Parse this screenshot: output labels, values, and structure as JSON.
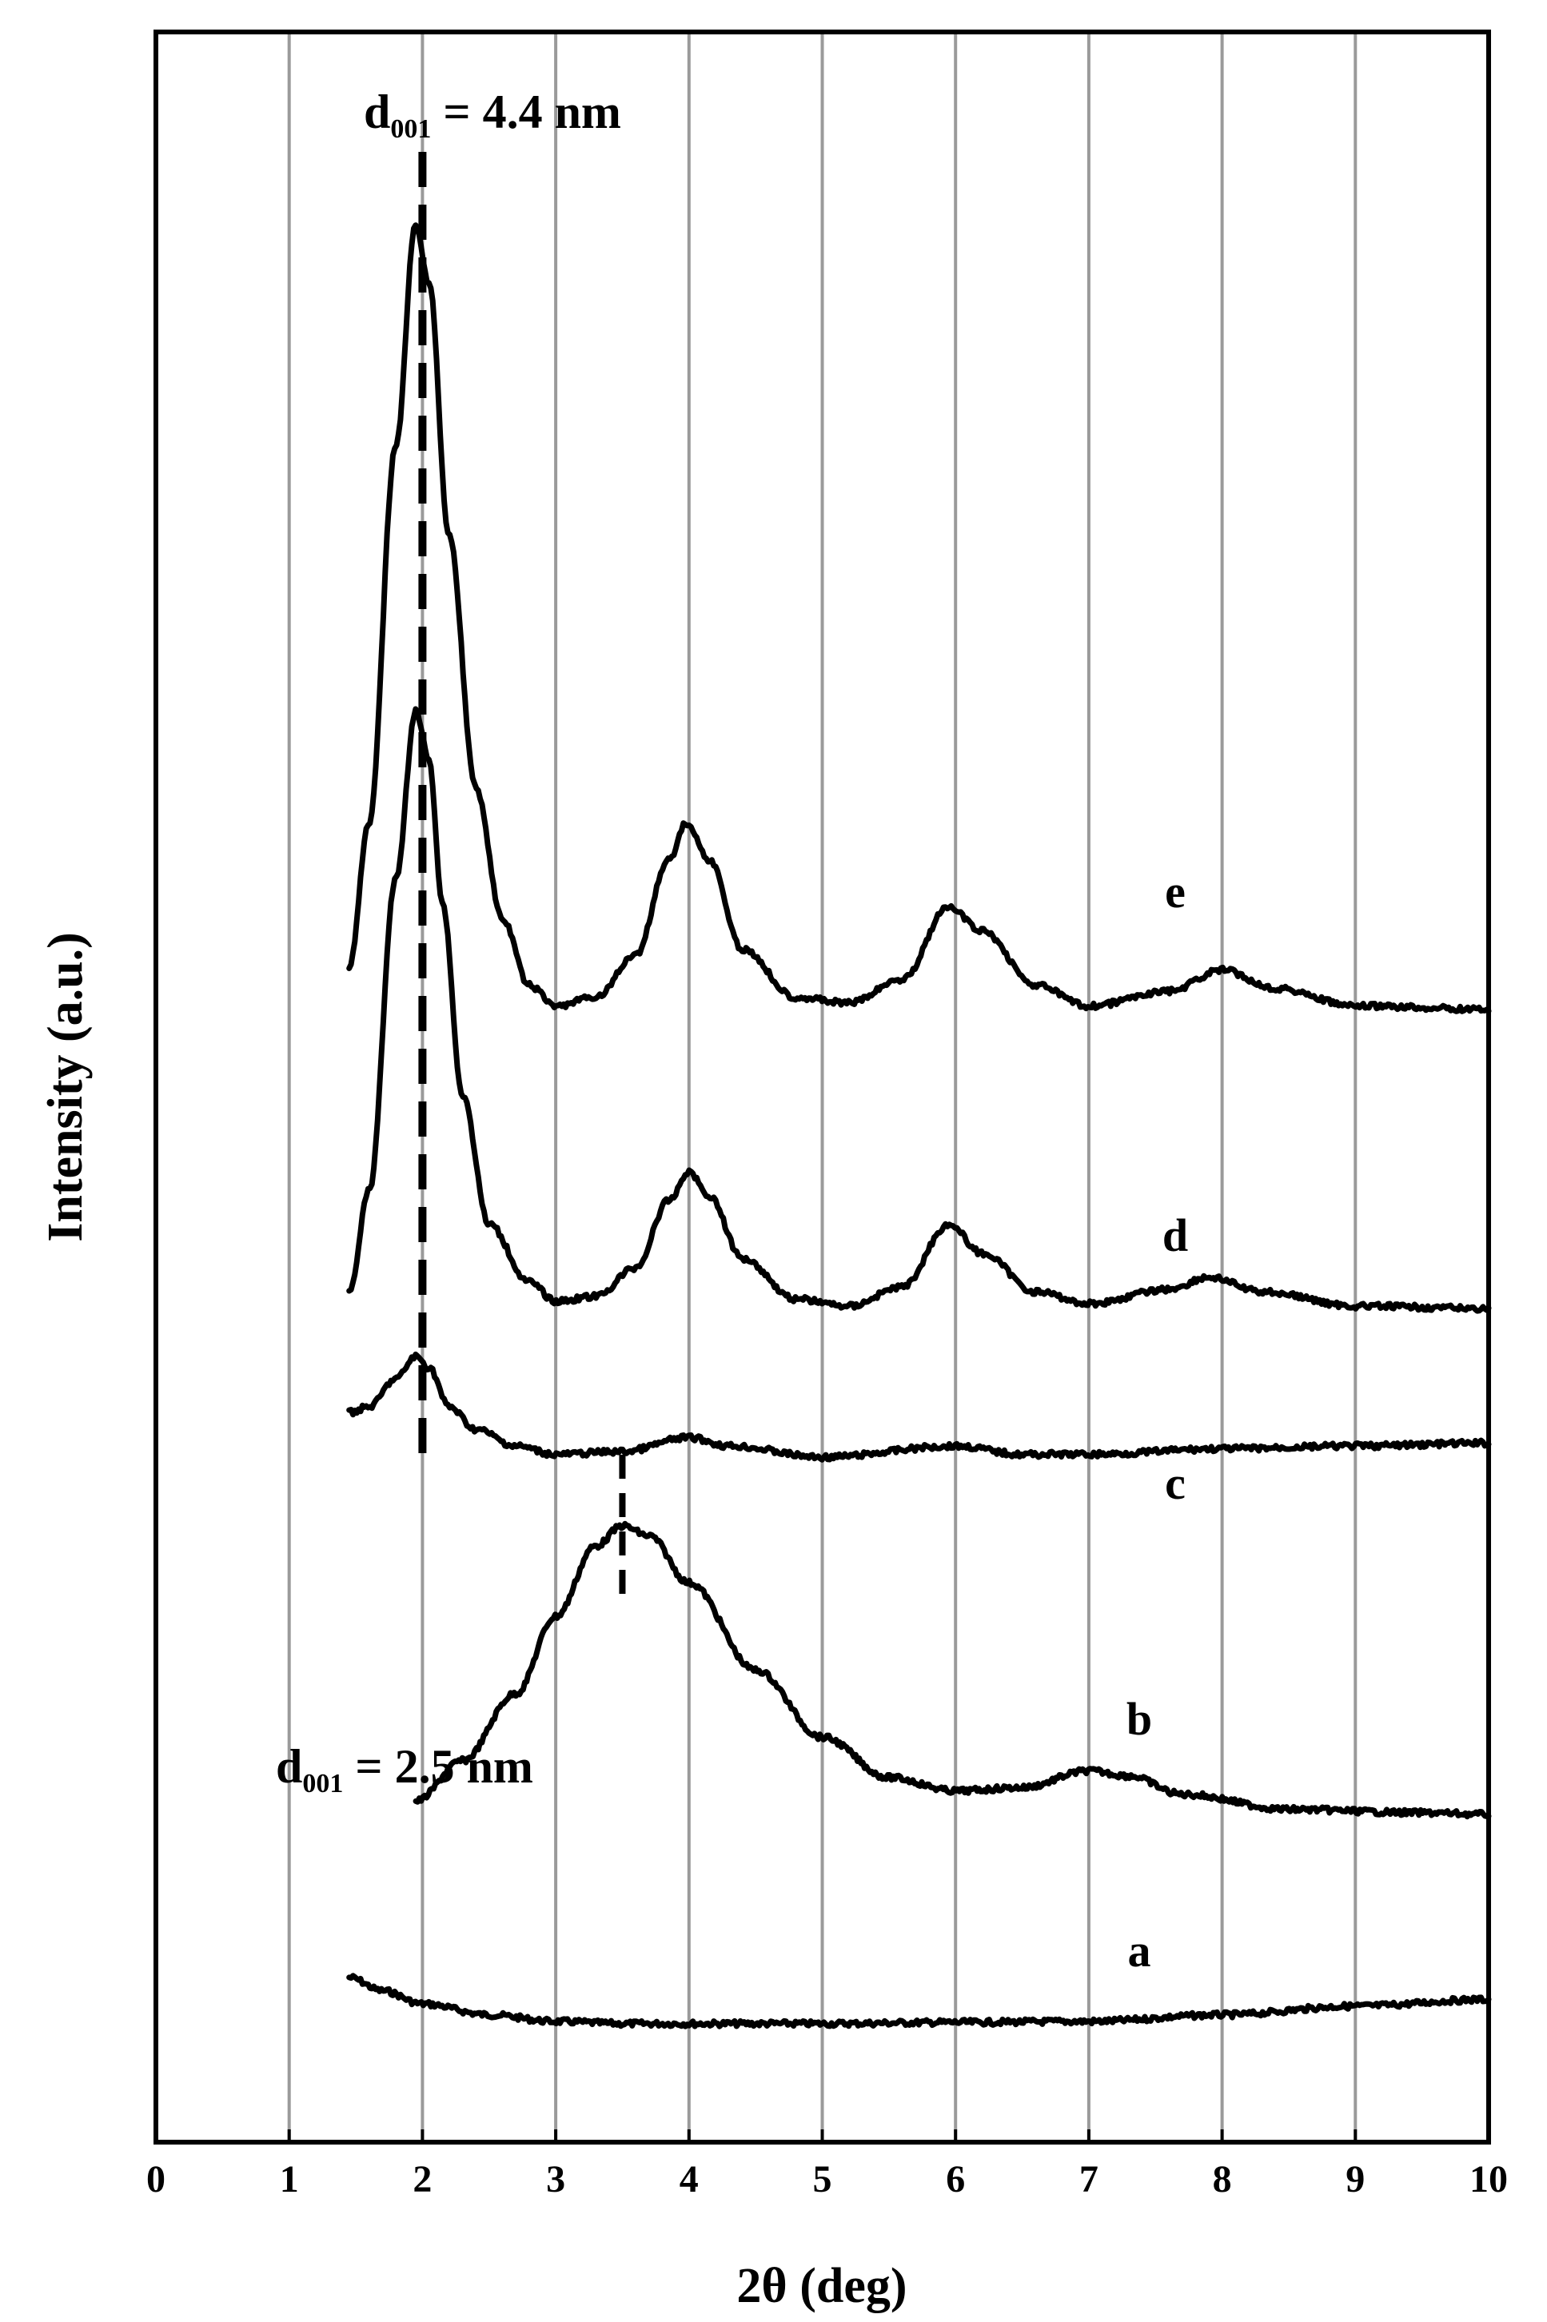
{
  "chart_data": {
    "type": "line",
    "xlabel": "2θ (deg)",
    "ylabel": "Intensity (a.u.)",
    "xlim": [
      0,
      10
    ],
    "x_ticks": [
      "0",
      "1",
      "2",
      "3",
      "4",
      "5",
      "6",
      "7",
      "8",
      "9",
      "10"
    ],
    "grid": "vertical",
    "y_scale": "arbitrary",
    "line_color": "#000000",
    "grid_color": "#9a9a9a",
    "series": [
      {
        "name": "a",
        "points": [
          [
            1.45,
            1.2
          ],
          [
            1.7,
            0.9
          ],
          [
            2.0,
            0.6
          ],
          [
            2.5,
            0.35
          ],
          [
            3.0,
            0.2
          ],
          [
            3.5,
            0.15
          ],
          [
            4.0,
            0.15
          ],
          [
            5.0,
            0.15
          ],
          [
            6.0,
            0.18
          ],
          [
            7.0,
            0.2
          ],
          [
            8.0,
            0.35
          ],
          [
            9.0,
            0.55
          ],
          [
            10.0,
            0.7
          ]
        ]
      },
      {
        "name": "b",
        "points": [
          [
            1.95,
            0.4
          ],
          [
            2.3,
            1.6
          ],
          [
            2.7,
            3.6
          ],
          [
            3.0,
            5.9
          ],
          [
            3.3,
            8.0
          ],
          [
            3.5,
            8.6
          ],
          [
            3.7,
            8.3
          ],
          [
            4.0,
            6.9
          ],
          [
            4.5,
            4.3
          ],
          [
            5.0,
            2.3
          ],
          [
            5.5,
            1.1
          ],
          [
            6.0,
            0.7
          ],
          [
            6.5,
            0.8
          ],
          [
            7.0,
            1.3
          ],
          [
            7.3,
            1.15
          ],
          [
            7.7,
            0.6
          ],
          [
            8.5,
            0.15
          ],
          [
            9.5,
            0.05
          ],
          [
            10.0,
            0.0
          ]
        ]
      },
      {
        "name": "c",
        "points": [
          [
            1.45,
            0.9
          ],
          [
            1.6,
            1.0
          ],
          [
            1.8,
            1.5
          ],
          [
            1.95,
            1.9
          ],
          [
            2.05,
            1.7
          ],
          [
            2.2,
            1.0
          ],
          [
            2.4,
            0.6
          ],
          [
            2.7,
            0.3
          ],
          [
            3.0,
            0.15
          ],
          [
            3.5,
            0.2
          ],
          [
            4.0,
            0.45
          ],
          [
            4.3,
            0.3
          ],
          [
            5.0,
            0.1
          ],
          [
            6.0,
            0.3
          ],
          [
            6.5,
            0.15
          ],
          [
            7.0,
            0.15
          ],
          [
            8.0,
            0.25
          ],
          [
            9.0,
            0.3
          ],
          [
            10.0,
            0.35
          ]
        ]
      },
      {
        "name": "d",
        "points": [
          [
            1.45,
            0.4
          ],
          [
            1.6,
            2.5
          ],
          [
            1.8,
            9.0
          ],
          [
            1.95,
            12.5
          ],
          [
            2.05,
            11.5
          ],
          [
            2.15,
            8.5
          ],
          [
            2.3,
            4.5
          ],
          [
            2.5,
            1.8
          ],
          [
            2.8,
            0.6
          ],
          [
            3.0,
            0.2
          ],
          [
            3.3,
            0.3
          ],
          [
            3.6,
            0.9
          ],
          [
            3.85,
            2.3
          ],
          [
            4.0,
            2.9
          ],
          [
            4.15,
            2.4
          ],
          [
            4.4,
            1.1
          ],
          [
            4.8,
            0.25
          ],
          [
            5.2,
            0.1
          ],
          [
            5.6,
            0.5
          ],
          [
            5.95,
            1.8
          ],
          [
            6.2,
            1.2
          ],
          [
            6.6,
            0.4
          ],
          [
            7.0,
            0.15
          ],
          [
            7.6,
            0.45
          ],
          [
            7.9,
            0.7
          ],
          [
            8.3,
            0.4
          ],
          [
            9.0,
            0.1
          ],
          [
            10.0,
            0.05
          ]
        ]
      },
      {
        "name": "e",
        "points": [
          [
            1.45,
            0.8
          ],
          [
            1.6,
            3.2
          ],
          [
            1.8,
            9.5
          ],
          [
            1.95,
            13.2
          ],
          [
            2.05,
            12.2
          ],
          [
            2.2,
            8.0
          ],
          [
            2.4,
            3.8
          ],
          [
            2.6,
            1.6
          ],
          [
            2.8,
            0.5
          ],
          [
            3.0,
            0.15
          ],
          [
            3.3,
            0.3
          ],
          [
            3.6,
            1.0
          ],
          [
            3.85,
            2.6
          ],
          [
            3.98,
            3.2
          ],
          [
            4.15,
            2.6
          ],
          [
            4.4,
            1.1
          ],
          [
            4.8,
            0.3
          ],
          [
            5.2,
            0.2
          ],
          [
            5.6,
            0.6
          ],
          [
            5.95,
            1.8
          ],
          [
            6.2,
            1.4
          ],
          [
            6.6,
            0.5
          ],
          [
            7.0,
            0.15
          ],
          [
            7.6,
            0.4
          ],
          [
            8.0,
            0.75
          ],
          [
            8.4,
            0.45
          ],
          [
            9.0,
            0.15
          ],
          [
            10.0,
            0.1
          ]
        ]
      }
    ],
    "annotations": [
      {
        "main": "d",
        "sub": "001",
        "rest": " = 4.4 nm",
        "x": 2.0
      },
      {
        "main": "d",
        "sub": "001",
        "rest": " = 2.5  nm",
        "x": 3.5
      }
    ]
  }
}
